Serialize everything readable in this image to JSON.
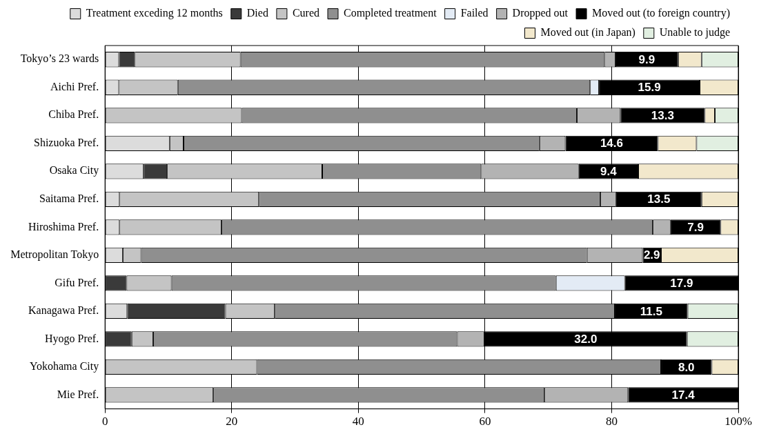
{
  "chart_data": {
    "type": "bar",
    "orientation": "horizontal",
    "stacked": true,
    "categories": [
      "Tokyo’s 23 wards",
      "Aichi Pref.",
      "Chiba Pref.",
      "Shizuoka Pref.",
      "Osaka City",
      "Saitama Pref.",
      "Hiroshima Pref.",
      "Metropolitan Tokyo",
      "Gifu Pref.",
      "Kanagawa Pref.",
      "Hyogo Pref.",
      "Yokohama City",
      "Mie Pref."
    ],
    "series": [
      {
        "name": "Treatment exceding 12 months",
        "color": "#dcdcdc",
        "values": [
          2.2,
          2.2,
          null,
          10.2,
          6.1,
          2.3,
          2.3,
          2.8,
          null,
          3.5,
          null,
          null,
          null
        ]
      },
      {
        "name": "Died",
        "color": "#3a3a3a",
        "values": [
          2.5,
          null,
          null,
          null,
          3.7,
          null,
          null,
          null,
          3.4,
          15.5,
          4.2,
          null,
          null
        ]
      },
      {
        "name": "Cured",
        "color": "#c4c4c4",
        "values": [
          16.7,
          9.3,
          21.6,
          2.2,
          24.5,
          22.0,
          16.1,
          2.9,
          7.1,
          7.8,
          3.4,
          24.0,
          17.1
        ]
      },
      {
        "name": "Completed treatment",
        "color": "#8f8f8f",
        "values": [
          57.5,
          65.1,
          52.9,
          56.2,
          25.1,
          53.9,
          68.1,
          70.4,
          60.7,
          53.7,
          48.0,
          63.8,
          52.3
        ]
      },
      {
        "name": "Failed",
        "color": "#e3ebf5",
        "values": [
          null,
          1.4,
          null,
          null,
          null,
          null,
          null,
          null,
          10.9,
          null,
          null,
          null,
          null
        ]
      },
      {
        "name": "Dropped out",
        "color": "#b3b3b3",
        "values": [
          1.7,
          null,
          6.9,
          4.1,
          15.4,
          2.5,
          2.8,
          8.8,
          null,
          null,
          4.3,
          null,
          13.2
        ]
      },
      {
        "name": "Moved out (to foreign country)",
        "color": "#000000",
        "values": [
          9.9,
          15.9,
          13.3,
          14.6,
          9.4,
          13.5,
          7.9,
          2.9,
          17.9,
          11.5,
          32.0,
          8.0,
          17.4
        ],
        "value_labels": [
          "9.9",
          "15.9",
          "13.3",
          "14.6",
          "9.4",
          "13.5",
          "7.9",
          "2.9",
          "17.9",
          "11.5",
          "32.0",
          "8.0",
          "17.4"
        ]
      },
      {
        "name": "Moved out (in Japan)",
        "color": "#f2e8cc",
        "values": [
          3.7,
          6.1,
          1.6,
          6.1,
          15.8,
          5.8,
          2.8,
          12.2,
          null,
          null,
          null,
          4.2,
          null
        ]
      },
      {
        "name": "Unable to judge",
        "color": "#e1efe1",
        "values": [
          5.8,
          null,
          3.7,
          6.6,
          null,
          null,
          null,
          null,
          null,
          8.0,
          8.1,
          null,
          null
        ]
      }
    ],
    "xlim": [
      0,
      100
    ],
    "xticks": [
      0,
      20,
      40,
      60,
      80,
      {
        "value": 100,
        "label": "100%"
      }
    ],
    "grid": "x",
    "legend": "top"
  }
}
